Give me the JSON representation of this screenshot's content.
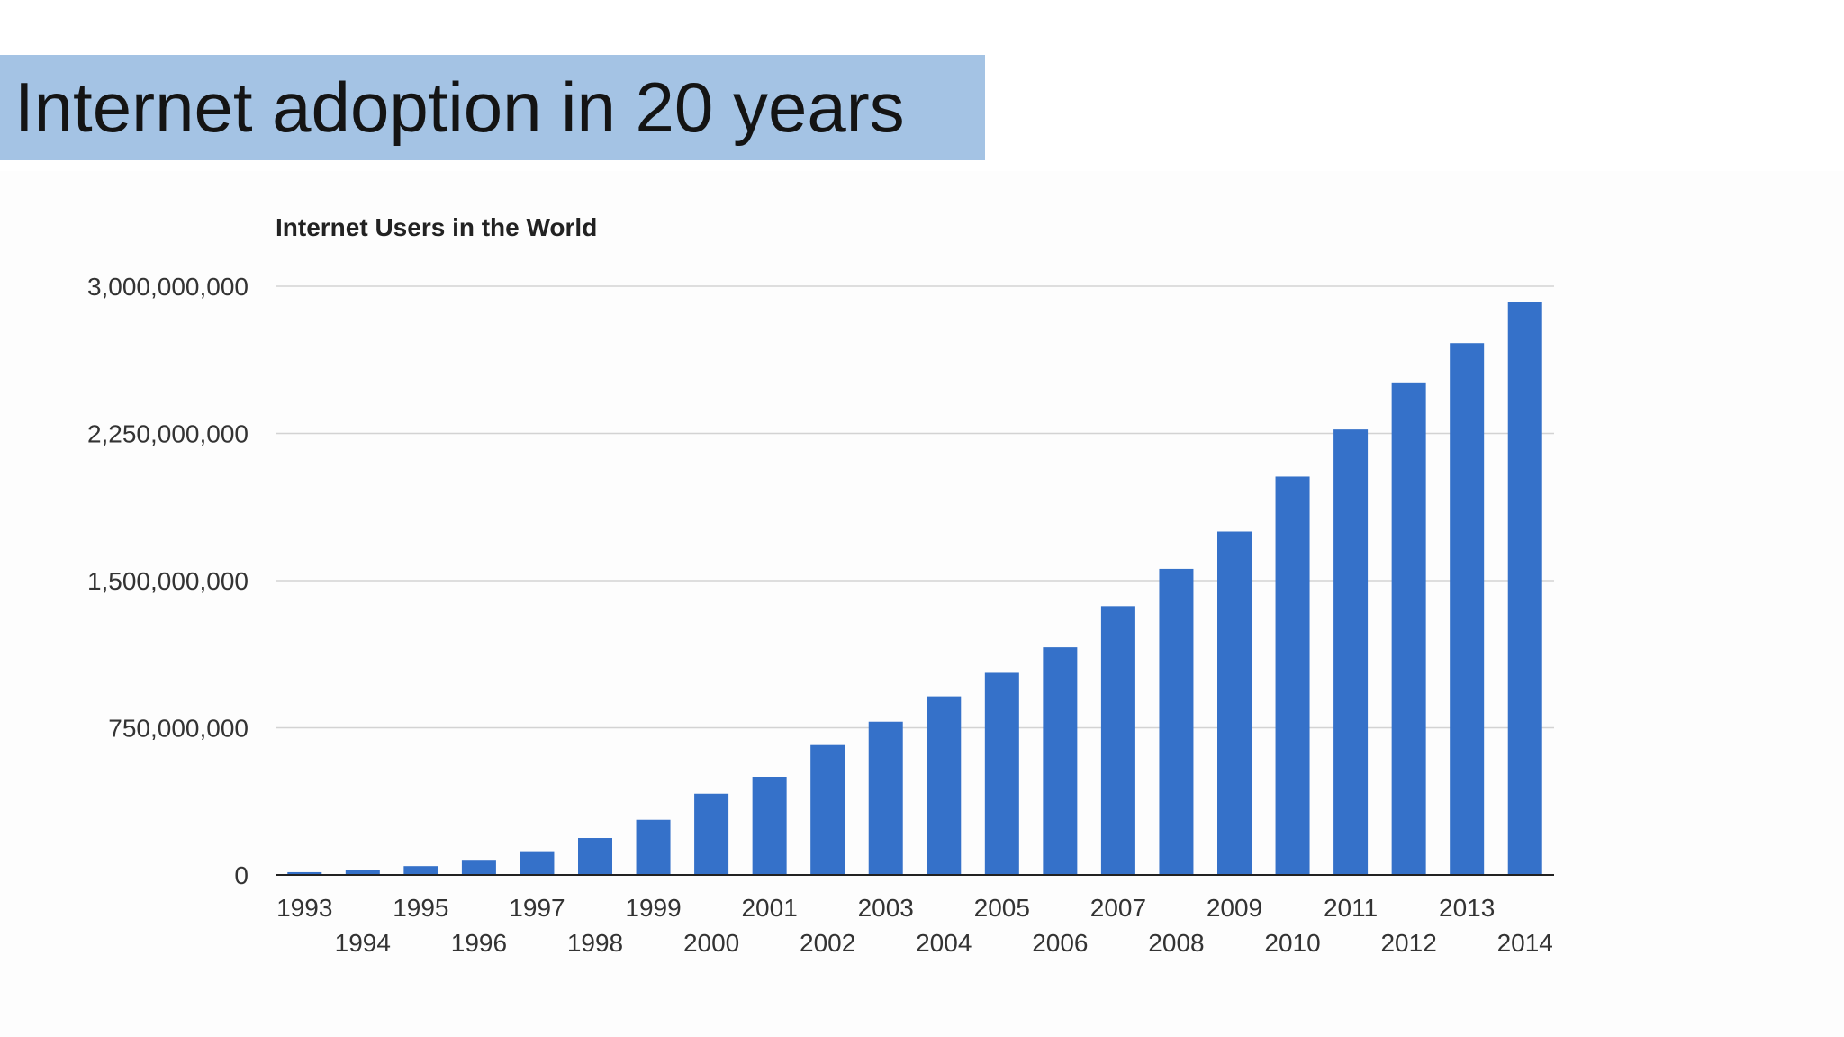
{
  "slide": {
    "title": "Internet adoption in 20 years"
  },
  "colors": {
    "banner": "#a4c3e4",
    "bar": "#3571c9",
    "grid": "#d3d3d3",
    "axis": "#222222",
    "text": "#222222"
  },
  "chart_data": {
    "type": "bar",
    "title": "Internet Users in the World",
    "xlabel": "",
    "ylabel": "",
    "ylim": [
      0,
      3000000000
    ],
    "yticks": [
      0,
      750000000,
      1500000000,
      2250000000,
      3000000000
    ],
    "ytick_labels": [
      "0",
      "750,000,000",
      "1,500,000,000",
      "2,250,000,000",
      "3,000,000,000"
    ],
    "grid": true,
    "legend": "none",
    "categories": [
      "1993",
      "1994",
      "1995",
      "1996",
      "1997",
      "1998",
      "1999",
      "2000",
      "2001",
      "2002",
      "2003",
      "2004",
      "2005",
      "2006",
      "2007",
      "2008",
      "2009",
      "2010",
      "2011",
      "2012",
      "2013",
      "2014"
    ],
    "values": [
      14000000,
      25000000,
      45000000,
      77000000,
      121000000,
      188000000,
      281000000,
      414000000,
      500000000,
      662000000,
      781000000,
      910000000,
      1030000000,
      1160000000,
      1370000000,
      1560000000,
      1750000000,
      2030000000,
      2270000000,
      2510000000,
      2710000000,
      2920000000
    ]
  }
}
